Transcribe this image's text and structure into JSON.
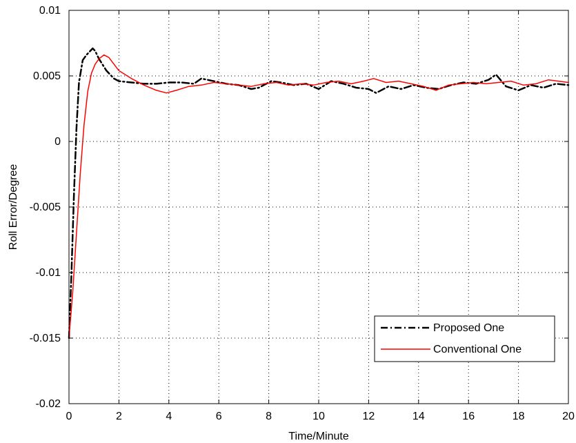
{
  "chart_data": {
    "type": "line",
    "title": "",
    "xlabel": "Time/Minute",
    "ylabel": "Roll Error/Degree",
    "xlim": [
      0,
      20
    ],
    "ylim": [
      -0.02,
      0.01
    ],
    "x_ticks": [
      0,
      2,
      4,
      6,
      8,
      10,
      12,
      14,
      16,
      18,
      20
    ],
    "y_ticks": [
      0.01,
      0.005,
      0,
      -0.005,
      -0.01,
      -0.015,
      -0.02
    ],
    "x_tick_labels": [
      "0",
      "2",
      "4",
      "6",
      "8",
      "10",
      "12",
      "14",
      "16",
      "18",
      "20"
    ],
    "y_tick_labels": [
      "0.01",
      "0.005",
      "0",
      "-0.005",
      "-0.01",
      "-0.015",
      "-0.02"
    ],
    "grid": true,
    "legend_position": "lower-right",
    "series": [
      {
        "name": "Proposed One",
        "color": "#000000",
        "style": "dash-dot",
        "points": [
          [
            0,
            -0.015
          ],
          [
            0.1,
            -0.01
          ],
          [
            0.2,
            -0.004
          ],
          [
            0.3,
            0.001
          ],
          [
            0.4,
            0.0045
          ],
          [
            0.55,
            0.0062
          ],
          [
            0.7,
            0.0066
          ],
          [
            0.85,
            0.0069
          ],
          [
            0.95,
            0.0071
          ],
          [
            1.05,
            0.0069
          ],
          [
            1.2,
            0.0063
          ],
          [
            1.5,
            0.0054
          ],
          [
            1.8,
            0.0048
          ],
          [
            2.0,
            0.0046
          ],
          [
            2.5,
            0.0045
          ],
          [
            3.0,
            0.0044
          ],
          [
            3.5,
            0.0044
          ],
          [
            4.0,
            0.0045
          ],
          [
            4.5,
            0.0045
          ],
          [
            5.0,
            0.0044
          ],
          [
            5.3,
            0.0048
          ],
          [
            5.8,
            0.0046
          ],
          [
            6.3,
            0.0044
          ],
          [
            6.8,
            0.0043
          ],
          [
            7.3,
            0.004
          ],
          [
            7.6,
            0.0041
          ],
          [
            8.1,
            0.0046
          ],
          [
            8.5,
            0.0045
          ],
          [
            9.0,
            0.0043
          ],
          [
            9.5,
            0.0044
          ],
          [
            10.0,
            0.004
          ],
          [
            10.5,
            0.0046
          ],
          [
            11.0,
            0.0044
          ],
          [
            11.5,
            0.0041
          ],
          [
            12.0,
            0.004
          ],
          [
            12.3,
            0.0037
          ],
          [
            12.8,
            0.0042
          ],
          [
            13.3,
            0.004
          ],
          [
            13.8,
            0.0043
          ],
          [
            14.3,
            0.0041
          ],
          [
            14.8,
            0.004
          ],
          [
            15.3,
            0.0043
          ],
          [
            15.8,
            0.0045
          ],
          [
            16.3,
            0.0044
          ],
          [
            16.8,
            0.0047
          ],
          [
            17.1,
            0.0051
          ],
          [
            17.5,
            0.0042
          ],
          [
            18.0,
            0.0039
          ],
          [
            18.5,
            0.0043
          ],
          [
            19.0,
            0.0041
          ],
          [
            19.5,
            0.0044
          ],
          [
            20.0,
            0.0043
          ]
        ]
      },
      {
        "name": "Conventional One",
        "color": "#ff0000",
        "style": "solid",
        "points": [
          [
            0,
            -0.015
          ],
          [
            0.15,
            -0.0115
          ],
          [
            0.3,
            -0.007
          ],
          [
            0.45,
            -0.0025
          ],
          [
            0.6,
            0.0012
          ],
          [
            0.75,
            0.0038
          ],
          [
            0.9,
            0.0052
          ],
          [
            1.05,
            0.0059
          ],
          [
            1.2,
            0.0063
          ],
          [
            1.4,
            0.0066
          ],
          [
            1.6,
            0.0064
          ],
          [
            1.8,
            0.0059
          ],
          [
            2.0,
            0.0054
          ],
          [
            2.5,
            0.0048
          ],
          [
            3.0,
            0.0043
          ],
          [
            3.5,
            0.0039
          ],
          [
            3.9,
            0.0037
          ],
          [
            4.3,
            0.0039
          ],
          [
            4.8,
            0.0042
          ],
          [
            5.3,
            0.0043
          ],
          [
            5.8,
            0.0045
          ],
          [
            6.3,
            0.0044
          ],
          [
            6.8,
            0.0043
          ],
          [
            7.3,
            0.0042
          ],
          [
            7.8,
            0.0044
          ],
          [
            8.3,
            0.0045
          ],
          [
            8.8,
            0.0043
          ],
          [
            9.3,
            0.0044
          ],
          [
            9.8,
            0.0043
          ],
          [
            10.3,
            0.0045
          ],
          [
            10.8,
            0.0046
          ],
          [
            11.3,
            0.0044
          ],
          [
            11.8,
            0.0046
          ],
          [
            12.2,
            0.0048
          ],
          [
            12.7,
            0.0045
          ],
          [
            13.2,
            0.0046
          ],
          [
            13.7,
            0.0044
          ],
          [
            14.2,
            0.0042
          ],
          [
            14.7,
            0.0039
          ],
          [
            15.2,
            0.0043
          ],
          [
            15.7,
            0.0044
          ],
          [
            16.2,
            0.0045
          ],
          [
            16.7,
            0.0044
          ],
          [
            17.2,
            0.0045
          ],
          [
            17.7,
            0.0046
          ],
          [
            18.2,
            0.0043
          ],
          [
            18.7,
            0.0044
          ],
          [
            19.2,
            0.0047
          ],
          [
            19.6,
            0.0046
          ],
          [
            20.0,
            0.0045
          ]
        ]
      }
    ]
  }
}
